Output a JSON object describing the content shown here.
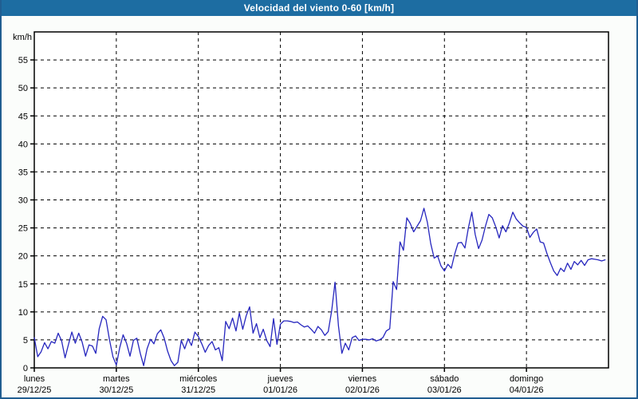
{
  "window": {
    "title": "Velocidad del viento 0-60 [km/h]"
  },
  "colors": {
    "titlebar_bg": "#1D6DA2",
    "title_text": "#FFFFFF",
    "frame_border": "#215E91",
    "page_bg": "#FBFDFB",
    "plot_bg": "#FFFFFF",
    "grid": "#000000",
    "axis": "#000000",
    "line": "#2626BE",
    "label_text": "#000000"
  },
  "chart_data": {
    "type": "line",
    "title": "Velocidad del viento 0-60 [km/h]",
    "ylabel": "km/h",
    "xlabel": "",
    "ylim": [
      0,
      60
    ],
    "y_tick_step": 5,
    "y_tick_labels": [
      0,
      5,
      10,
      15,
      20,
      25,
      30,
      35,
      40,
      45,
      50,
      55
    ],
    "grid": "dashed",
    "legend_position": "none",
    "x_axis": {
      "hours_per_day": 24,
      "days": [
        {
          "name": "lunes",
          "date": "29/12/25"
        },
        {
          "name": "martes",
          "date": "30/12/25"
        },
        {
          "name": "miércoles",
          "date": "31/12/25"
        },
        {
          "name": "jueves",
          "date": "01/01/26"
        },
        {
          "name": "viernes",
          "date": "02/01/26"
        },
        {
          "name": "sábado",
          "date": "03/01/26"
        },
        {
          "name": "domingo",
          "date": "04/01/26"
        }
      ]
    },
    "series": [
      {
        "name": "velocidad del viento",
        "unit": "km/h",
        "x_unit": "hours_since_start",
        "points": [
          [
            0,
            5.4
          ],
          [
            1,
            2.0
          ],
          [
            2,
            2.9
          ],
          [
            3,
            4.5
          ],
          [
            4,
            3.4
          ],
          [
            5,
            4.7
          ],
          [
            6,
            4.4
          ],
          [
            7,
            6.2
          ],
          [
            8,
            4.8
          ],
          [
            9,
            1.8
          ],
          [
            10,
            4.2
          ],
          [
            11,
            6.4
          ],
          [
            12,
            4.4
          ],
          [
            13,
            6.2
          ],
          [
            14,
            4.6
          ],
          [
            15,
            2.1
          ],
          [
            16,
            4.1
          ],
          [
            17,
            3.9
          ],
          [
            18,
            2.6
          ],
          [
            19,
            7.0
          ],
          [
            20,
            9.2
          ],
          [
            21,
            8.6
          ],
          [
            22,
            5.0
          ],
          [
            23,
            2.0
          ],
          [
            24,
            0.5
          ],
          [
            25,
            3.6
          ],
          [
            26,
            5.9
          ],
          [
            27,
            4.4
          ],
          [
            28,
            2.1
          ],
          [
            29,
            4.9
          ],
          [
            30,
            5.3
          ],
          [
            31,
            2.6
          ],
          [
            32,
            0.4
          ],
          [
            33,
            3.4
          ],
          [
            34,
            5.1
          ],
          [
            35,
            4.3
          ],
          [
            36,
            6.1
          ],
          [
            37,
            6.8
          ],
          [
            38,
            5.3
          ],
          [
            39,
            3.0
          ],
          [
            40,
            1.3
          ],
          [
            41,
            0.4
          ],
          [
            42,
            1.0
          ],
          [
            43,
            4.9
          ],
          [
            44,
            3.4
          ],
          [
            45,
            5.2
          ],
          [
            46,
            4.0
          ],
          [
            47,
            6.4
          ],
          [
            48,
            5.6
          ],
          [
            49,
            4.3
          ],
          [
            50,
            2.8
          ],
          [
            51,
            4.0
          ],
          [
            52,
            4.7
          ],
          [
            53,
            3.2
          ],
          [
            54,
            3.6
          ],
          [
            55,
            1.3
          ],
          [
            56,
            8.3
          ],
          [
            57,
            7.0
          ],
          [
            58,
            8.9
          ],
          [
            59,
            6.6
          ],
          [
            60,
            9.8
          ],
          [
            61,
            6.9
          ],
          [
            62,
            9.3
          ],
          [
            63,
            10.9
          ],
          [
            64,
            6.2
          ],
          [
            65,
            7.9
          ],
          [
            66,
            5.4
          ],
          [
            67,
            6.9
          ],
          [
            68,
            4.9
          ],
          [
            69,
            3.8
          ],
          [
            70,
            8.8
          ],
          [
            71,
            4.2
          ],
          [
            72,
            7.8
          ],
          [
            73,
            8.4
          ],
          [
            74,
            8.4
          ],
          [
            75,
            8.3
          ],
          [
            76,
            8.1
          ],
          [
            77,
            8.2
          ],
          [
            78,
            7.7
          ],
          [
            79,
            7.3
          ],
          [
            80,
            7.5
          ],
          [
            81,
            6.9
          ],
          [
            82,
            6.2
          ],
          [
            83,
            7.4
          ],
          [
            84,
            6.8
          ],
          [
            85,
            5.8
          ],
          [
            86,
            6.5
          ],
          [
            87,
            10.2
          ],
          [
            88,
            15.3
          ],
          [
            89,
            7.5
          ],
          [
            90,
            2.6
          ],
          [
            91,
            4.4
          ],
          [
            92,
            3.2
          ],
          [
            93,
            5.4
          ],
          [
            94,
            5.7
          ],
          [
            95,
            4.9
          ],
          [
            96,
            5.1
          ],
          [
            97,
            5.1
          ],
          [
            98,
            5.0
          ],
          [
            99,
            5.2
          ],
          [
            100,
            4.8
          ],
          [
            101,
            5.0
          ],
          [
            102,
            5.4
          ],
          [
            103,
            6.6
          ],
          [
            104,
            7.0
          ],
          [
            105,
            15.4
          ],
          [
            106,
            14.0
          ],
          [
            107,
            22.5
          ],
          [
            108,
            21.0
          ],
          [
            109,
            26.8
          ],
          [
            110,
            25.8
          ],
          [
            111,
            24.3
          ],
          [
            112,
            25.3
          ],
          [
            113,
            26.3
          ],
          [
            114,
            28.5
          ],
          [
            115,
            26.0
          ],
          [
            116,
            22.2
          ],
          [
            117,
            19.6
          ],
          [
            118,
            20.0
          ],
          [
            119,
            18.2
          ],
          [
            120,
            17.3
          ],
          [
            121,
            18.5
          ],
          [
            122,
            17.8
          ],
          [
            123,
            20.3
          ],
          [
            124,
            22.3
          ],
          [
            125,
            22.4
          ],
          [
            126,
            21.4
          ],
          [
            127,
            25.0
          ],
          [
            128,
            27.8
          ],
          [
            129,
            23.8
          ],
          [
            130,
            21.3
          ],
          [
            131,
            22.8
          ],
          [
            132,
            25.3
          ],
          [
            133,
            27.4
          ],
          [
            134,
            26.8
          ],
          [
            135,
            25.2
          ],
          [
            136,
            23.2
          ],
          [
            137,
            25.4
          ],
          [
            138,
            24.3
          ],
          [
            139,
            25.9
          ],
          [
            140,
            27.8
          ],
          [
            141,
            26.6
          ],
          [
            142,
            25.9
          ],
          [
            143,
            25.3
          ],
          [
            144,
            25.1
          ],
          [
            145,
            23.3
          ],
          [
            146,
            24.2
          ],
          [
            147,
            24.8
          ],
          [
            148,
            22.5
          ],
          [
            149,
            22.3
          ],
          [
            150,
            20.4
          ],
          [
            151,
            18.8
          ],
          [
            152,
            17.3
          ],
          [
            153,
            16.5
          ],
          [
            154,
            17.8
          ],
          [
            155,
            17.2
          ],
          [
            156,
            18.7
          ],
          [
            157,
            17.6
          ],
          [
            158,
            19.0
          ],
          [
            159,
            18.4
          ],
          [
            160,
            19.2
          ],
          [
            161,
            18.3
          ],
          [
            162,
            19.3
          ],
          [
            163,
            19.5
          ],
          [
            164,
            19.4
          ],
          [
            165,
            19.3
          ],
          [
            166,
            19.1
          ],
          [
            167,
            19.3
          ]
        ]
      }
    ]
  }
}
